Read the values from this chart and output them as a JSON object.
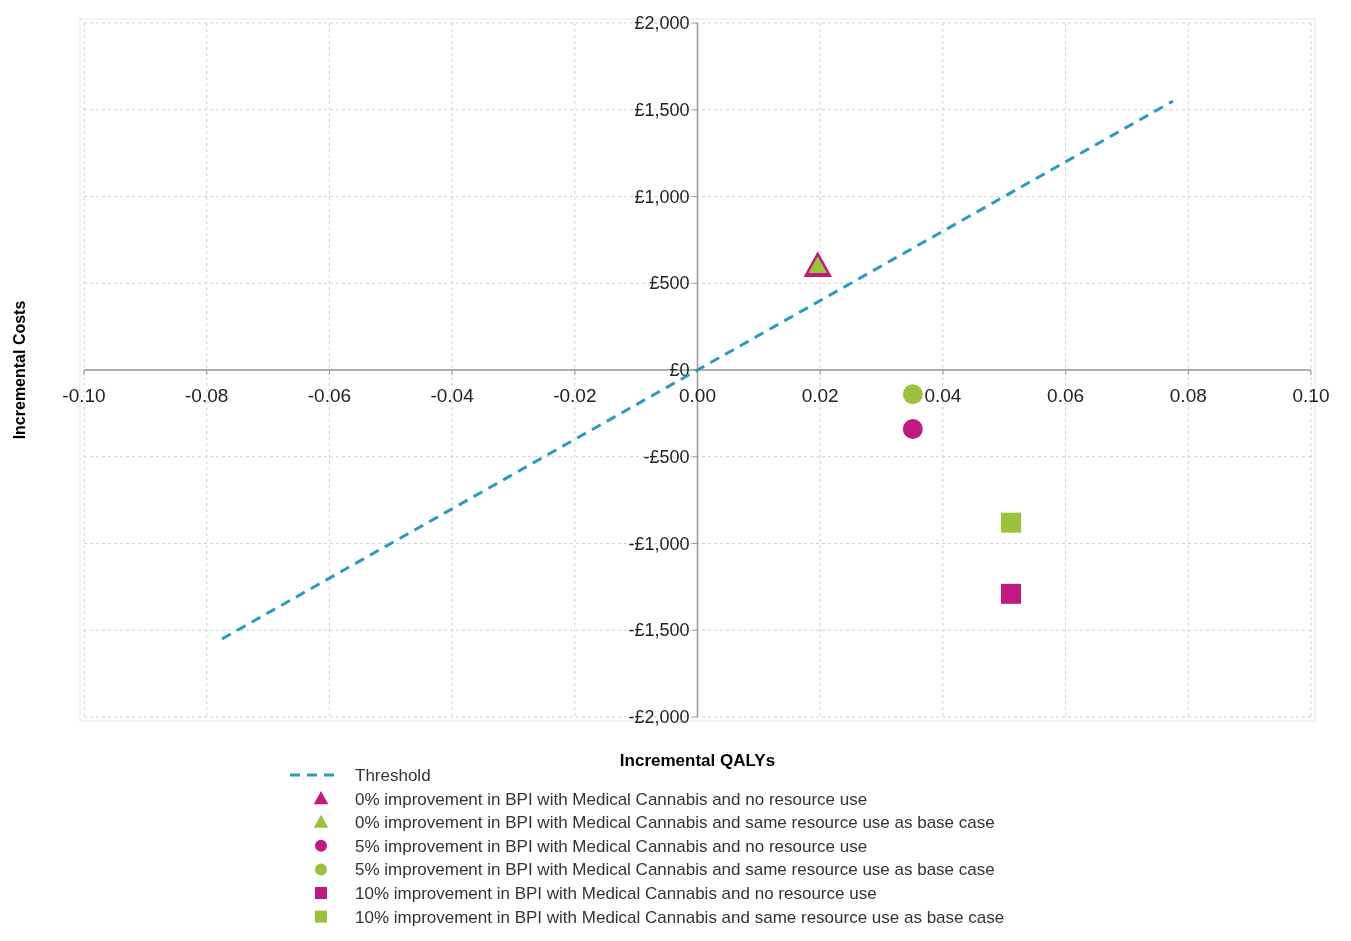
{
  "chart_data": {
    "type": "scatter",
    "xlabel": "Incremental QALYs",
    "ylabel": "Incremental Costs",
    "xlim": [
      -0.1,
      0.1
    ],
    "ylim": [
      -2000,
      2000
    ],
    "xticks": [
      {
        "value": -0.1,
        "label": "-0.10"
      },
      {
        "value": -0.08,
        "label": "-0.08"
      },
      {
        "value": -0.06,
        "label": "-0.06"
      },
      {
        "value": -0.04,
        "label": "-0.04"
      },
      {
        "value": -0.02,
        "label": "-0.02"
      },
      {
        "value": 0,
        "label": "0.00"
      },
      {
        "value": 0.02,
        "label": "0.02"
      },
      {
        "value": 0.04,
        "label": "0.04"
      },
      {
        "value": 0.06,
        "label": "0.06"
      },
      {
        "value": 0.08,
        "label": "0.08"
      },
      {
        "value": 0.1,
        "label": "0.10"
      }
    ],
    "yticks": [
      {
        "value": -2000,
        "label": "-£2,000"
      },
      {
        "value": -1500,
        "label": "-£1,500"
      },
      {
        "value": -1000,
        "label": "-£1,000"
      },
      {
        "value": -500,
        "label": "-£500"
      },
      {
        "value": 0,
        "label": "£0"
      },
      {
        "value": 500,
        "label": "£500"
      },
      {
        "value": 1000,
        "label": "£1,000"
      },
      {
        "value": 1500,
        "label": "£1,500"
      },
      {
        "value": 2000,
        "label": "£2,000"
      }
    ],
    "grid": true,
    "legend": "bottom",
    "series": [
      {
        "name": "Threshold",
        "type": "line",
        "line_style": "dashed",
        "marker": "none",
        "color": "#2a9bbf",
        "x": [
          -0.0775,
          0.0775
        ],
        "values": [
          -1550,
          1550
        ]
      },
      {
        "name": "0% improvement in BPI with Medical Cannabis and no resource use",
        "marker": "triangle",
        "color": "#c0197f",
        "x": [
          0.0196
        ],
        "values": [
          600
        ]
      },
      {
        "name": "0% improvement in BPI with Medical Cannabis and same resource use as base case",
        "marker": "triangle",
        "color": "#9bc23c",
        "x": [
          0.0196
        ],
        "values": [
          600
        ]
      },
      {
        "name": "5% improvement in BPI with Medical Cannabis and no resource use",
        "marker": "circle",
        "color": "#c0197f",
        "x": [
          0.0351
        ],
        "values": [
          -340
        ]
      },
      {
        "name": "5% improvement in BPI with Medical Cannabis and same resource use as base case",
        "marker": "circle",
        "color": "#9bc23c",
        "x": [
          0.0351
        ],
        "values": [
          -140
        ]
      },
      {
        "name": "10% improvement in BPI with Medical Cannabis and no resource use",
        "marker": "square",
        "color": "#c0197f",
        "x": [
          0.0511
        ],
        "values": [
          -1290
        ]
      },
      {
        "name": "10% improvement in BPI with Medical Cannabis and same resource use as base case",
        "marker": "square",
        "color": "#9bc23c",
        "x": [
          0.0511
        ],
        "values": [
          -880
        ]
      }
    ]
  }
}
